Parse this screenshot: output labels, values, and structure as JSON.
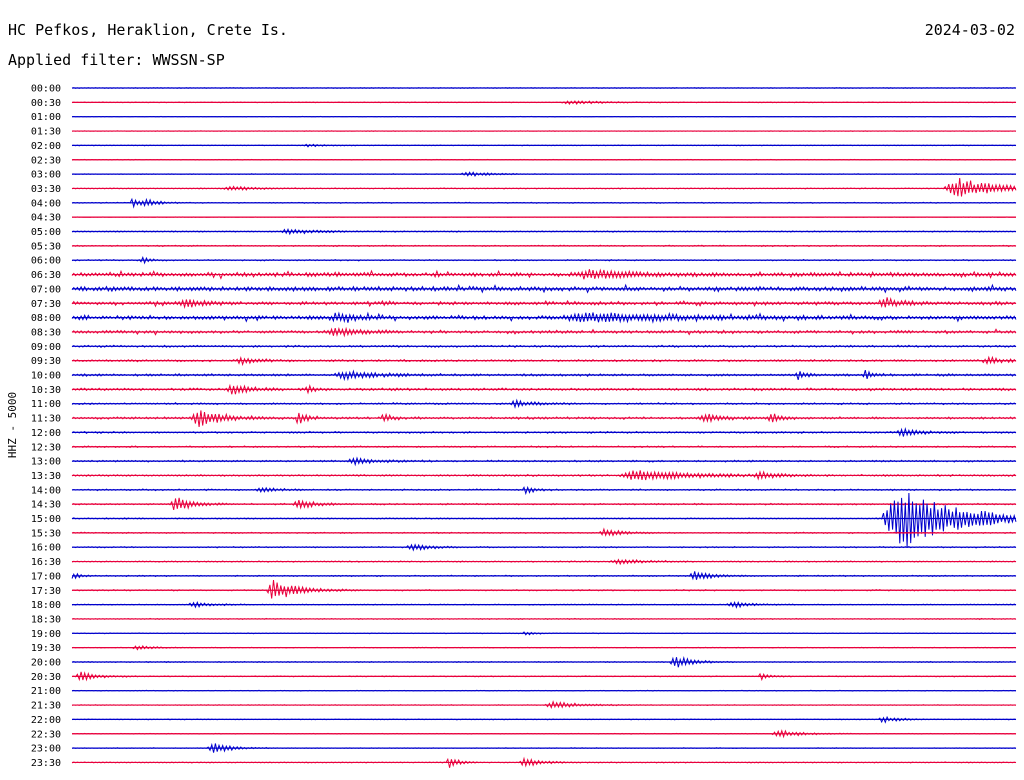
{
  "header": {
    "station": "HC Pefkos, Heraklion, Crete Is.",
    "date": "2024-03-02",
    "filter": "Applied filter: WWSSN-SP"
  },
  "chart_data": {
    "type": "line",
    "title": "HC Pefkos, Heraklion, Crete Is.",
    "ylabel": "HHZ - 5000",
    "row_labels": [
      "00:00",
      "00:30",
      "01:00",
      "01:30",
      "02:00",
      "02:30",
      "03:00",
      "03:30",
      "04:00",
      "04:30",
      "05:00",
      "05:30",
      "06:00",
      "06:30",
      "07:00",
      "07:30",
      "08:00",
      "08:30",
      "09:00",
      "09:30",
      "10:00",
      "10:30",
      "11:00",
      "11:30",
      "12:00",
      "12:30",
      "13:00",
      "13:30",
      "14:00",
      "14:30",
      "15:00",
      "15:30",
      "16:00",
      "16:30",
      "17:00",
      "17:30",
      "18:00",
      "18:30",
      "19:00",
      "19:30",
      "20:00",
      "20:30",
      "21:00",
      "21:30",
      "22:00",
      "22:30",
      "23:00",
      "23:30"
    ],
    "trace_colors": [
      "#0000cc",
      "#e8003c"
    ],
    "noise_level": [
      0.3,
      0.3,
      0.2,
      0.2,
      0.3,
      0.3,
      0.3,
      0.4,
      0.4,
      0.2,
      0.5,
      0.5,
      0.5,
      1.6,
      1.8,
      1.3,
      1.5,
      1.1,
      0.8,
      0.8,
      0.9,
      1.0,
      0.7,
      0.9,
      0.7,
      0.6,
      0.7,
      0.7,
      0.6,
      0.6,
      0.5,
      0.5,
      0.5,
      0.5,
      0.5,
      0.5,
      0.4,
      0.4,
      0.3,
      0.3,
      0.4,
      0.4,
      0.3,
      0.3,
      0.3,
      0.3,
      0.3,
      0.4
    ],
    "events": [
      {
        "row": "00:30",
        "x": 0.53,
        "amp": 0.4,
        "dur": 0.04
      },
      {
        "row": "02:00",
        "x": 0.25,
        "amp": 0.3,
        "dur": 0.02
      },
      {
        "row": "03:00",
        "x": 0.42,
        "amp": 0.5,
        "dur": 0.03
      },
      {
        "row": "03:30",
        "x": 0.17,
        "amp": 0.5,
        "dur": 0.03
      },
      {
        "row": "03:30",
        "x": 0.94,
        "amp": 2.6,
        "dur": 0.05
      },
      {
        "row": "04:00",
        "x": 0.065,
        "amp": 1.3,
        "dur": 0.01
      },
      {
        "row": "04:00",
        "x": 0.08,
        "amp": 0.8,
        "dur": 0.015
      },
      {
        "row": "05:00",
        "x": 0.23,
        "amp": 0.7,
        "dur": 0.03
      },
      {
        "row": "06:00",
        "x": 0.075,
        "amp": 0.8,
        "dur": 0.01
      },
      {
        "row": "06:30",
        "x": 0.55,
        "amp": 1.0,
        "dur": 0.05
      },
      {
        "row": "07:30",
        "x": 0.12,
        "amp": 1.0,
        "dur": 0.02
      },
      {
        "row": "07:30",
        "x": 0.86,
        "amp": 1.0,
        "dur": 0.02
      },
      {
        "row": "08:00",
        "x": 0.28,
        "amp": 1.1,
        "dur": 0.02
      },
      {
        "row": "08:00",
        "x": 0.55,
        "amp": 1.0,
        "dur": 0.1
      },
      {
        "row": "08:30",
        "x": 0.28,
        "amp": 0.8,
        "dur": 0.03
      },
      {
        "row": "09:30",
        "x": 0.18,
        "amp": 0.8,
        "dur": 0.02
      },
      {
        "row": "09:30",
        "x": 0.97,
        "amp": 0.8,
        "dur": 0.02
      },
      {
        "row": "10:00",
        "x": 0.29,
        "amp": 0.9,
        "dur": 0.04
      },
      {
        "row": "10:00",
        "x": 0.77,
        "amp": 1.2,
        "dur": 0.01
      },
      {
        "row": "10:00",
        "x": 0.84,
        "amp": 1.0,
        "dur": 0.01
      },
      {
        "row": "10:30",
        "x": 0.17,
        "amp": 1.3,
        "dur": 0.02
      },
      {
        "row": "10:30",
        "x": 0.25,
        "amp": 0.9,
        "dur": 0.01
      },
      {
        "row": "11:00",
        "x": 0.47,
        "amp": 0.8,
        "dur": 0.02
      },
      {
        "row": "11:30",
        "x": 0.135,
        "amp": 2.0,
        "dur": 0.03
      },
      {
        "row": "11:30",
        "x": 0.24,
        "amp": 1.6,
        "dur": 0.01
      },
      {
        "row": "11:30",
        "x": 0.33,
        "amp": 1.2,
        "dur": 0.01
      },
      {
        "row": "11:30",
        "x": 0.67,
        "amp": 1.0,
        "dur": 0.02
      },
      {
        "row": "11:30",
        "x": 0.74,
        "amp": 1.5,
        "dur": 0.01
      },
      {
        "row": "12:00",
        "x": 0.88,
        "amp": 1.0,
        "dur": 0.02
      },
      {
        "row": "13:00",
        "x": 0.3,
        "amp": 0.7,
        "dur": 0.03
      },
      {
        "row": "13:30",
        "x": 0.6,
        "amp": 1.2,
        "dur": 0.07
      },
      {
        "row": "13:30",
        "x": 0.73,
        "amp": 0.9,
        "dur": 0.02
      },
      {
        "row": "14:00",
        "x": 0.2,
        "amp": 0.6,
        "dur": 0.02
      },
      {
        "row": "14:00",
        "x": 0.48,
        "amp": 1.2,
        "dur": 0.01
      },
      {
        "row": "14:30",
        "x": 0.11,
        "amp": 1.8,
        "dur": 0.02
      },
      {
        "row": "14:30",
        "x": 0.24,
        "amp": 1.2,
        "dur": 0.02
      },
      {
        "row": "15:00",
        "x": 0.88,
        "amp": 7.5,
        "dur": 0.07
      },
      {
        "row": "15:30",
        "x": 0.565,
        "amp": 1.0,
        "dur": 0.02
      },
      {
        "row": "16:00",
        "x": 0.36,
        "amp": 0.9,
        "dur": 0.02
      },
      {
        "row": "16:30",
        "x": 0.58,
        "amp": 0.6,
        "dur": 0.03
      },
      {
        "row": "17:00",
        "x": 0.0,
        "amp": 0.8,
        "dur": 0.01
      },
      {
        "row": "17:00",
        "x": 0.66,
        "amp": 1.2,
        "dur": 0.02
      },
      {
        "row": "17:30",
        "x": 0.215,
        "amp": 2.5,
        "dur": 0.03
      },
      {
        "row": "18:00",
        "x": 0.13,
        "amp": 0.7,
        "dur": 0.02
      },
      {
        "row": "18:00",
        "x": 0.7,
        "amp": 0.8,
        "dur": 0.02
      },
      {
        "row": "19:00",
        "x": 0.48,
        "amp": 0.5,
        "dur": 0.01
      },
      {
        "row": "19:30",
        "x": 0.07,
        "amp": 0.5,
        "dur": 0.02
      },
      {
        "row": "20:00",
        "x": 0.64,
        "amp": 1.5,
        "dur": 0.02
      },
      {
        "row": "20:30",
        "x": 0.01,
        "amp": 1.0,
        "dur": 0.02
      },
      {
        "row": "20:30",
        "x": 0.73,
        "amp": 0.9,
        "dur": 0.01
      },
      {
        "row": "21:30",
        "x": 0.51,
        "amp": 0.9,
        "dur": 0.03
      },
      {
        "row": "22:00",
        "x": 0.86,
        "amp": 0.7,
        "dur": 0.02
      },
      {
        "row": "22:30",
        "x": 0.75,
        "amp": 0.8,
        "dur": 0.03
      },
      {
        "row": "23:00",
        "x": 0.15,
        "amp": 1.4,
        "dur": 0.02
      },
      {
        "row": "23:30",
        "x": 0.4,
        "amp": 1.7,
        "dur": 0.01
      },
      {
        "row": "23:30",
        "x": 0.48,
        "amp": 1.1,
        "dur": 0.02
      }
    ]
  }
}
